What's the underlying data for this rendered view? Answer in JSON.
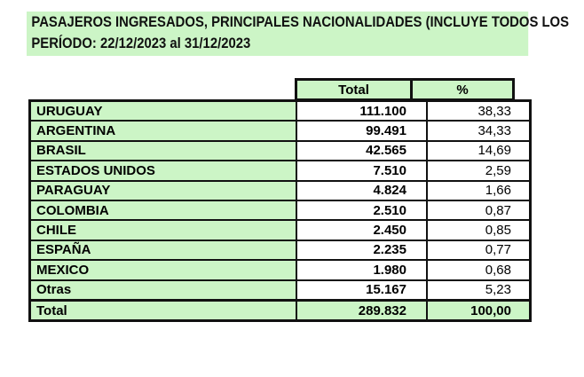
{
  "title": {
    "line1": "PASAJEROS INGRESADOS, PRINCIPALES NACIONALIDADES (INCLUYE TODOS LOS",
    "line2": "PERÍODO: 22/12/2023 al 31/12/2023"
  },
  "headers": {
    "total": "Total",
    "pct": "%"
  },
  "rows": [
    {
      "country": "URUGUAY",
      "total": "111.100",
      "pct": "38,33"
    },
    {
      "country": "ARGENTINA",
      "total": "99.491",
      "pct": "34,33"
    },
    {
      "country": "BRASIL",
      "total": "42.565",
      "pct": "14,69"
    },
    {
      "country": "ESTADOS UNIDOS",
      "total": "7.510",
      "pct": "2,59"
    },
    {
      "country": "PARAGUAY",
      "total": "4.824",
      "pct": "1,66"
    },
    {
      "country": "COLOMBIA",
      "total": "2.510",
      "pct": "0,87"
    },
    {
      "country": "CHILE",
      "total": "2.450",
      "pct": "0,85"
    },
    {
      "country": "ESPAÑA",
      "total": "2.235",
      "pct": "0,77"
    },
    {
      "country": "MEXICO",
      "total": "1.980",
      "pct": "0,68"
    },
    {
      "country": "Otras",
      "total": "15.167",
      "pct": "5,23"
    }
  ],
  "total": {
    "label": "Total",
    "total": "289.832",
    "pct": "100,00"
  }
}
